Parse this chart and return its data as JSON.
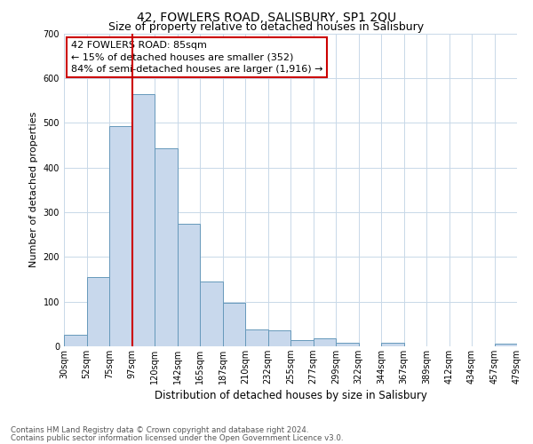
{
  "title": "42, FOWLERS ROAD, SALISBURY, SP1 2QU",
  "subtitle": "Size of property relative to detached houses in Salisbury",
  "xlabel": "Distribution of detached houses by size in Salisbury",
  "ylabel": "Number of detached properties",
  "bar_color": "#c8d8ec",
  "bar_edge_color": "#6699bb",
  "bin_labels": [
    "30sqm",
    "52sqm",
    "75sqm",
    "97sqm",
    "120sqm",
    "142sqm",
    "165sqm",
    "187sqm",
    "210sqm",
    "232sqm",
    "255sqm",
    "277sqm",
    "299sqm",
    "322sqm",
    "344sqm",
    "367sqm",
    "389sqm",
    "412sqm",
    "434sqm",
    "457sqm",
    "479sqm"
  ],
  "bar_heights": [
    25,
    155,
    493,
    563,
    443,
    275,
    145,
    98,
    37,
    35,
    13,
    17,
    8,
    0,
    7,
    0,
    0,
    0,
    0,
    5
  ],
  "vline_color": "#cc0000",
  "vline_position": 3.0,
  "ylim": [
    0,
    700
  ],
  "yticks": [
    0,
    100,
    200,
    300,
    400,
    500,
    600,
    700
  ],
  "annotation_title": "42 FOWLERS ROAD: 85sqm",
  "annotation_line1": "← 15% of detached houses are smaller (352)",
  "annotation_line2": "84% of semi-detached houses are larger (1,916) →",
  "annotation_box_facecolor": "#ffffff",
  "annotation_box_edgecolor": "#cc0000",
  "footer_line1": "Contains HM Land Registry data © Crown copyright and database right 2024.",
  "footer_line2": "Contains public sector information licensed under the Open Government Licence v3.0.",
  "background_color": "#ffffff",
  "grid_color": "#c8d8e8",
  "title_fontsize": 10,
  "subtitle_fontsize": 9,
  "ylabel_fontsize": 8,
  "xlabel_fontsize": 8.5,
  "tick_fontsize": 7,
  "annotation_fontsize": 8,
  "footer_fontsize": 6.2,
  "footer_color": "#555555"
}
